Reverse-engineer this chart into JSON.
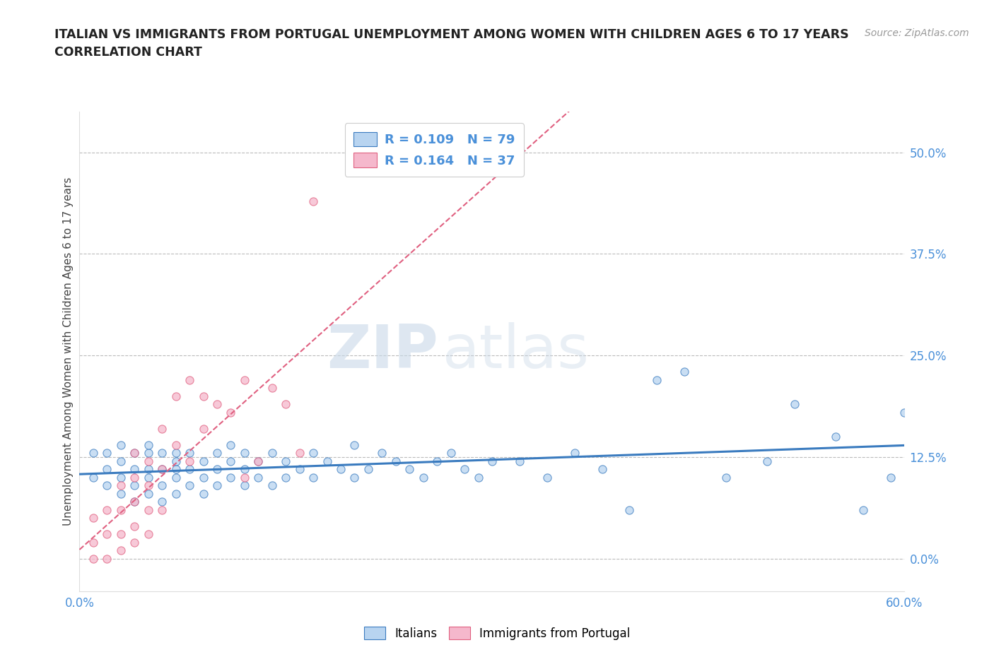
{
  "title_line1": "ITALIAN VS IMMIGRANTS FROM PORTUGAL UNEMPLOYMENT AMONG WOMEN WITH CHILDREN AGES 6 TO 17 YEARS",
  "title_line2": "CORRELATION CHART",
  "source": "Source: ZipAtlas.com",
  "ylabel": "Unemployment Among Women with Children Ages 6 to 17 years",
  "xlim": [
    0.0,
    0.6
  ],
  "ylim": [
    -0.04,
    0.55
  ],
  "yticks_right": [
    0.0,
    0.125,
    0.25,
    0.375,
    0.5
  ],
  "yticklabels_right": [
    "0.0%",
    "12.5%",
    "25.0%",
    "37.5%",
    "50.0%"
  ],
  "blue_R": 0.109,
  "blue_N": 79,
  "pink_R": 0.164,
  "pink_N": 37,
  "blue_color": "#b8d4f0",
  "pink_color": "#f5b8cc",
  "blue_line_color": "#3a7bbf",
  "pink_line_color": "#e06080",
  "legend_text_color": "#4a90d9",
  "watermark_zip": "ZIP",
  "watermark_atlas": "atlas",
  "blue_scatter_x": [
    0.01,
    0.01,
    0.02,
    0.02,
    0.02,
    0.03,
    0.03,
    0.03,
    0.03,
    0.04,
    0.04,
    0.04,
    0.04,
    0.05,
    0.05,
    0.05,
    0.05,
    0.05,
    0.06,
    0.06,
    0.06,
    0.06,
    0.07,
    0.07,
    0.07,
    0.07,
    0.07,
    0.08,
    0.08,
    0.08,
    0.09,
    0.09,
    0.09,
    0.1,
    0.1,
    0.1,
    0.11,
    0.11,
    0.11,
    0.12,
    0.12,
    0.12,
    0.13,
    0.13,
    0.14,
    0.14,
    0.15,
    0.15,
    0.16,
    0.17,
    0.17,
    0.18,
    0.19,
    0.2,
    0.2,
    0.21,
    0.22,
    0.23,
    0.24,
    0.25,
    0.26,
    0.27,
    0.28,
    0.29,
    0.3,
    0.32,
    0.34,
    0.36,
    0.38,
    0.4,
    0.42,
    0.44,
    0.47,
    0.5,
    0.52,
    0.55,
    0.57,
    0.59,
    0.6
  ],
  "blue_scatter_y": [
    0.1,
    0.13,
    0.09,
    0.11,
    0.13,
    0.08,
    0.1,
    0.12,
    0.14,
    0.07,
    0.09,
    0.11,
    0.13,
    0.08,
    0.1,
    0.11,
    0.13,
    0.14,
    0.07,
    0.09,
    0.11,
    0.13,
    0.08,
    0.1,
    0.11,
    0.12,
    0.13,
    0.09,
    0.11,
    0.13,
    0.08,
    0.1,
    0.12,
    0.09,
    0.11,
    0.13,
    0.1,
    0.12,
    0.14,
    0.09,
    0.11,
    0.13,
    0.1,
    0.12,
    0.09,
    0.13,
    0.1,
    0.12,
    0.11,
    0.1,
    0.13,
    0.12,
    0.11,
    0.1,
    0.14,
    0.11,
    0.13,
    0.12,
    0.11,
    0.1,
    0.12,
    0.13,
    0.11,
    0.1,
    0.12,
    0.12,
    0.1,
    0.13,
    0.11,
    0.06,
    0.22,
    0.23,
    0.1,
    0.12,
    0.19,
    0.15,
    0.06,
    0.1,
    0.18
  ],
  "pink_scatter_x": [
    0.01,
    0.01,
    0.01,
    0.02,
    0.02,
    0.02,
    0.03,
    0.03,
    0.03,
    0.03,
    0.04,
    0.04,
    0.04,
    0.04,
    0.04,
    0.05,
    0.05,
    0.05,
    0.05,
    0.06,
    0.06,
    0.06,
    0.07,
    0.07,
    0.08,
    0.08,
    0.09,
    0.09,
    0.1,
    0.11,
    0.12,
    0.12,
    0.13,
    0.14,
    0.15,
    0.16,
    0.17
  ],
  "pink_scatter_y": [
    0.0,
    0.02,
    0.05,
    0.0,
    0.03,
    0.06,
    0.01,
    0.03,
    0.06,
    0.09,
    0.02,
    0.04,
    0.07,
    0.1,
    0.13,
    0.03,
    0.06,
    0.09,
    0.12,
    0.06,
    0.11,
    0.16,
    0.14,
    0.2,
    0.12,
    0.22,
    0.16,
    0.2,
    0.19,
    0.18,
    0.1,
    0.22,
    0.12,
    0.21,
    0.19,
    0.13,
    0.44
  ]
}
